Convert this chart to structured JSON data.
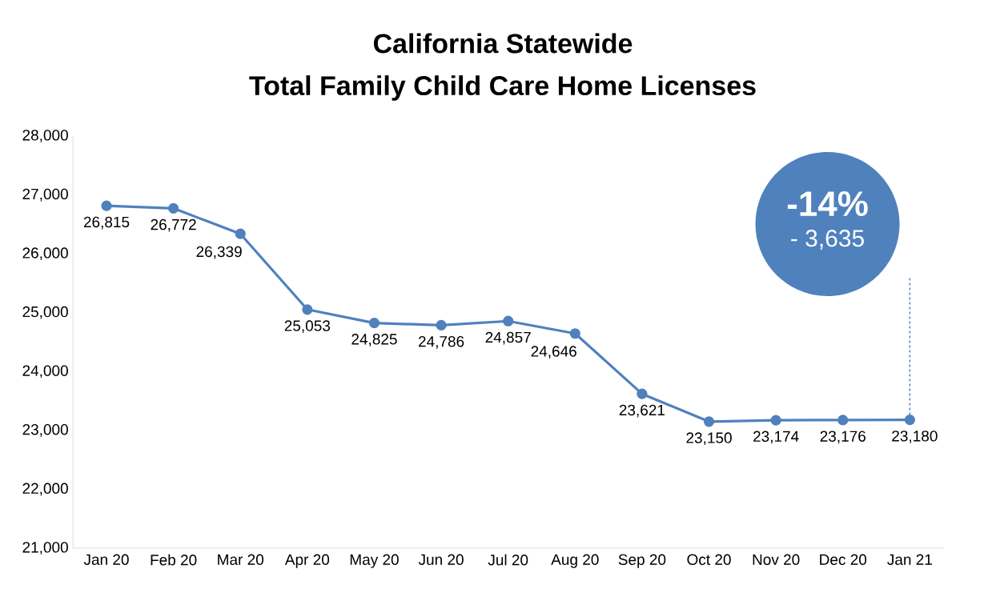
{
  "chart_data": {
    "type": "line",
    "title": "California Statewide",
    "subtitle": "Total Family Child Care Home Licenses",
    "categories": [
      "Jan 20",
      "Feb 20",
      "Mar 20",
      "Apr 20",
      "May 20",
      "Jun 20",
      "Jul 20",
      "Aug 20",
      "Sep 20",
      "Oct 20",
      "Nov 20",
      "Dec 20",
      "Jan 21"
    ],
    "values": [
      26815,
      26772,
      26339,
      25053,
      24825,
      24786,
      24857,
      24646,
      23621,
      23150,
      23174,
      23176,
      23180
    ],
    "value_labels": [
      "26,815",
      "26,772",
      "26,339",
      "25,053",
      "24,825",
      "24,786",
      "24,857",
      "24,646",
      "23,621",
      "23,150",
      "23,174",
      "23,176",
      "23,180"
    ],
    "color": "#4f81bd",
    "marker": "circle",
    "line_style": "solid",
    "grid": false,
    "ylim": [
      21000,
      28000
    ],
    "yticks": [
      {
        "value": 21000,
        "label": "21,000"
      },
      {
        "value": 22000,
        "label": "22,000"
      },
      {
        "value": 23000,
        "label": "23,000"
      },
      {
        "value": 24000,
        "label": "24,000"
      },
      {
        "value": 25000,
        "label": "25,000"
      },
      {
        "value": 26000,
        "label": "26,000"
      },
      {
        "value": 27000,
        "label": "27,000"
      },
      {
        "value": 28000,
        "label": "28,000"
      }
    ],
    "annotations": [
      "-14%",
      "- 3,635"
    ]
  }
}
